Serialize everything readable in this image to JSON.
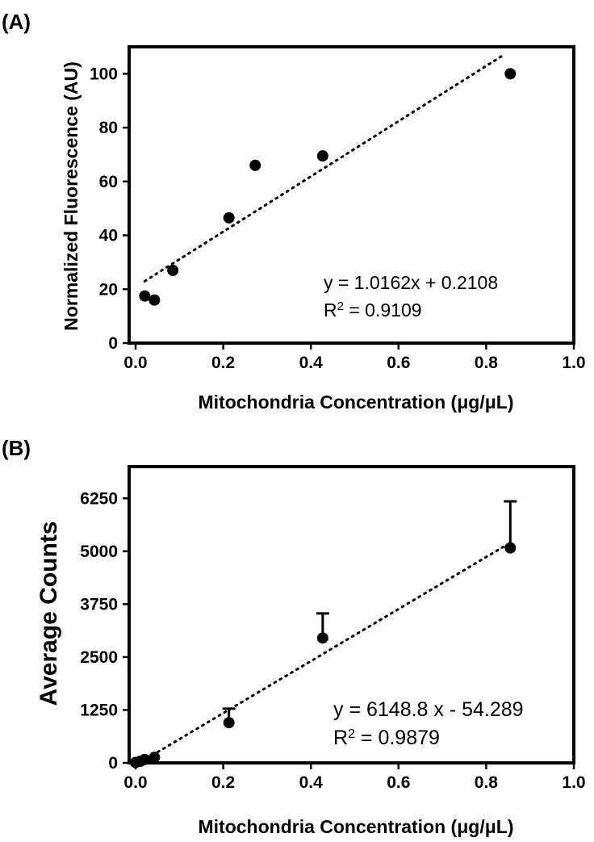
{
  "chart_data": [
    {
      "panel_label": "(A)",
      "type": "scatter",
      "xlabel": "Mitochondria Concentration (μg/μL)",
      "ylabel": "Normalized Fluorescence (AU)",
      "xlim": [
        0.0,
        1.0
      ],
      "ylim": [
        0,
        110
      ],
      "xticks": [
        0.0,
        0.2,
        0.4,
        0.6,
        0.8,
        1.0
      ],
      "xtick_labels": [
        "0.0",
        "0.2",
        "0.4",
        "0.6",
        "0.8",
        "1.0"
      ],
      "yticks": [
        0,
        20,
        40,
        60,
        80,
        100
      ],
      "ytick_labels": [
        "0",
        "20",
        "40",
        "60",
        "80",
        "100"
      ],
      "points": [
        {
          "x": 0.021,
          "y": 17.5
        },
        {
          "x": 0.043,
          "y": 16.0
        },
        {
          "x": 0.085,
          "y": 27.0
        },
        {
          "x": 0.213,
          "y": 46.5
        },
        {
          "x": 0.273,
          "y": 66.0
        },
        {
          "x": 0.427,
          "y": 69.5
        },
        {
          "x": 0.855,
          "y": 100.0
        }
      ],
      "fit_line": {
        "x_start": 0.021,
        "y_start": 23.0,
        "x_end": 0.84,
        "y_end": 107.0
      },
      "equation": "y = 1.0162x + 0.2108",
      "r2_prefix": "R",
      "r2_sup": "2",
      "r2_value": " = 0.9109",
      "grid": false,
      "legend": "none"
    },
    {
      "panel_label": "(B)",
      "type": "scatter",
      "xlabel": "Mitochondria Concentration (μg/μL)",
      "ylabel": "Average Counts",
      "xlim": [
        0.0,
        1.0
      ],
      "ylim": [
        0,
        7000
      ],
      "xticks": [
        0.0,
        0.2,
        0.4,
        0.6,
        0.8,
        1.0
      ],
      "xtick_labels": [
        "0.0",
        "0.2",
        "0.4",
        "0.6",
        "0.8",
        "1.0"
      ],
      "yticks": [
        0,
        1250,
        2500,
        3750,
        5000,
        6250
      ],
      "ytick_labels": [
        "0",
        "1250",
        "2500",
        "3750",
        "5000",
        "6250"
      ],
      "points": [
        {
          "x": 0.0,
          "y": 10,
          "err": 0
        },
        {
          "x": 0.011,
          "y": 40,
          "err": 0
        },
        {
          "x": 0.021,
          "y": 80,
          "err": 0
        },
        {
          "x": 0.043,
          "y": 130,
          "err": 0
        },
        {
          "x": 0.213,
          "y": 950,
          "err": 330
        },
        {
          "x": 0.427,
          "y": 2950,
          "err": 580
        },
        {
          "x": 0.855,
          "y": 5080,
          "err": 1100
        }
      ],
      "fit_line": {
        "x_start": 0.0,
        "y_start": -54,
        "x_end": 0.84,
        "y_end": 5110
      },
      "equation": "y = 6148.8 x - 54.289",
      "r2_prefix": "R",
      "r2_sup": "2",
      "r2_value": " = 0.9879",
      "grid": false,
      "legend": "none"
    }
  ]
}
